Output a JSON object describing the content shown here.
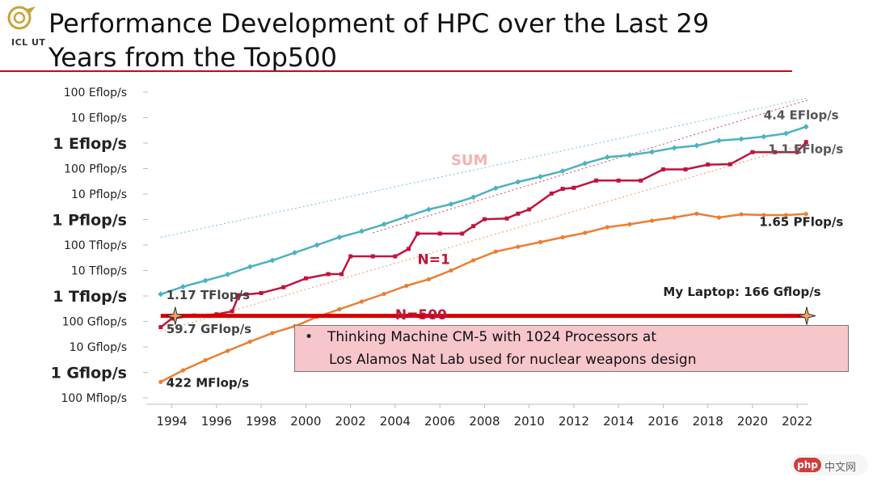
{
  "header": {
    "logo_text": "ICL UT",
    "title_line1": "Performance Development of HPC over the Last 29",
    "title_line2": "Years from the Top500"
  },
  "colors": {
    "sum": "#4bb3c0",
    "n1": "#c0143c",
    "n500": "#ed7d31",
    "laptop": "#d40000",
    "title_rule": "#b5121b",
    "callout_bg": "#f7c6cb"
  },
  "chart_data": {
    "type": "line",
    "x_axis": {
      "min": 1993,
      "max": 2022.5,
      "ticks": [
        1994,
        1996,
        1998,
        2000,
        2002,
        2004,
        2006,
        2008,
        2010,
        2012,
        2014,
        2016,
        2018,
        2020,
        2022
      ]
    },
    "y_axis": {
      "scale": "log",
      "unit": "flop/s",
      "ticks": [
        {
          "label": "100 Mflop/s",
          "value": 100000000.0,
          "major": false
        },
        {
          "label": "1 Gflop/s",
          "value": 1000000000.0,
          "major": true
        },
        {
          "label": "10 Gflop/s",
          "value": 10000000000.0,
          "major": false
        },
        {
          "label": "100 Gflop/s",
          "value": 100000000000.0,
          "major": false
        },
        {
          "label": "1 Tflop/s",
          "value": 1000000000000.0,
          "major": true
        },
        {
          "label": "10 Tflop/s",
          "value": 10000000000000.0,
          "major": false
        },
        {
          "label": "100 Tflop/s",
          "value": 100000000000000.0,
          "major": false
        },
        {
          "label": "1 Pflop/s",
          "value": 1000000000000000.0,
          "major": true
        },
        {
          "label": "10 Pflop/s",
          "value": 1e+16,
          "major": false
        },
        {
          "label": "100 Pflop/s",
          "value": 1e+17,
          "major": false
        },
        {
          "label": "1 Eflop/s",
          "value": 1e+18,
          "major": true
        },
        {
          "label": "10 Eflop/s",
          "value": 1e+19,
          "major": false
        },
        {
          "label": "100 Eflop/s",
          "value": 1e+20,
          "major": false
        }
      ]
    },
    "grid": false,
    "series": [
      {
        "name": "SUM",
        "color": "#4bb3c0",
        "x": [
          1993.5,
          1994.5,
          1995.5,
          1996.5,
          1997.5,
          1998.5,
          1999.5,
          2000.5,
          2001.5,
          2002.5,
          2003.5,
          2004.5,
          2005.5,
          2006.5,
          2007.5,
          2008.5,
          2009.5,
          2010.5,
          2011.5,
          2012.5,
          2013.5,
          2014.5,
          2015.5,
          2016.5,
          2017.5,
          2018.5,
          2019.5,
          2020.5,
          2021.5,
          2022.4
        ],
        "y": [
          1170000000000.0,
          2300000000000.0,
          4000000000000.0,
          7000000000000.0,
          14000000000000.0,
          25000000000000.0,
          50000000000000.0,
          100000000000000.0,
          200000000000000.0,
          350000000000000.0,
          650000000000000.0,
          1300000000000000.0,
          2500000000000000.0,
          4000000000000000.0,
          7500000000000000.0,
          1.7e+16,
          3e+16,
          4.8e+16,
          8e+16,
          1.6e+17,
          2.8e+17,
          3.4e+17,
          4.5e+17,
          6.5e+17,
          8e+17,
          1.25e+18,
          1.45e+18,
          1.8e+18,
          2.4e+18,
          4.4e+18
        ]
      },
      {
        "name": "N=1",
        "color": "#c0143c",
        "x": [
          1993.5,
          1994.0,
          1995.0,
          1996.0,
          1996.7,
          1997.0,
          1998.0,
          1999.0,
          2000.0,
          2001.0,
          2001.6,
          2002.0,
          2003.0,
          2004.0,
          2004.6,
          2005.0,
          2006.0,
          2007.0,
          2007.5,
          2008.0,
          2009.0,
          2009.5,
          2010.0,
          2011.0,
          2011.5,
          2012.0,
          2013.0,
          2014.0,
          2015.0,
          2016.0,
          2017.0,
          2018.0,
          2019.0,
          2020.0,
          2021.0,
          2022.0,
          2022.4
        ],
        "y": [
          59700000000.0,
          130000000000.0,
          170000000000.0,
          190000000000.0,
          250000000000.0,
          1070000000000.0,
          1300000000000.0,
          2200000000000.0,
          4900000000000.0,
          7200000000000.0,
          7200000000000.0,
          35900000000000.0,
          35900000000000.0,
          35900000000000.0,
          70000000000000.0,
          280000000000000.0,
          280000000000000.0,
          280000000000000.0,
          550000000000000.0,
          1030000000000000.0,
          1100000000000000.0,
          1700000000000000.0,
          2500000000000000.0,
          1.05e+16,
          1.6e+16,
          1.76e+16,
          3.39e+16,
          3.39e+16,
          3.39e+16,
          9.3e+16,
          9.3e+16,
          1.435e+17,
          1.485e+17,
          4.42e+17,
          4.42e+17,
          4.42e+17,
          1.1e+18
        ]
      },
      {
        "name": "N=500",
        "color": "#ed7d31",
        "x": [
          1993.5,
          1994.5,
          1995.5,
          1996.5,
          1997.5,
          1998.5,
          1999.5,
          2000.5,
          2001.5,
          2002.5,
          2003.5,
          2004.5,
          2005.5,
          2006.5,
          2007.5,
          2008.5,
          2009.5,
          2010.5,
          2011.5,
          2012.5,
          2013.5,
          2014.5,
          2015.5,
          2016.5,
          2017.5,
          2018.5,
          2019.5,
          2020.5,
          2021.5,
          2022.4
        ],
        "y": [
          422000000.0,
          1200000000.0,
          3000000000.0,
          7000000000.0,
          16000000000.0,
          35000000000.0,
          65000000000.0,
          150000000000.0,
          300000000000.0,
          600000000000.0,
          1200000000000.0,
          2500000000000.0,
          4500000000000.0,
          10000000000000.0,
          25000000000000.0,
          55000000000000.0,
          85000000000000.0,
          130000000000000.0,
          200000000000000.0,
          300000000000000.0,
          500000000000000.0,
          650000000000000.0,
          900000000000000.0,
          1200000000000000.0,
          1700000000000000.0,
          1200000000000000.0,
          1600000000000000.0,
          1500000000000000.0,
          1500000000000000.0,
          1650000000000000.0
        ]
      }
    ],
    "trend_lines": [
      {
        "series": "SUM",
        "x": [
          1993.5,
          2022.5
        ],
        "y": [
          200000000000000.0,
          6e+19
        ]
      },
      {
        "series": "N=1",
        "x": [
          2003.0,
          2022.5
        ],
        "y": [
          300000000000000.0,
          5e+19
        ]
      },
      {
        "series": "N=500",
        "x": [
          1993.5,
          2022.5
        ],
        "y": [
          40000000000.0,
          1e+18
        ]
      }
    ],
    "laptop_line": {
      "label": "My Laptop: 166 Gflop/s",
      "value": 166000000000.0,
      "x_start": 1993.5,
      "x_end": 2022.5
    },
    "annotations": [
      {
        "text": "SUM",
        "x": 2006.5,
        "y": 1.4e+17,
        "color": "#f2b3b3",
        "size": 18,
        "bold": true
      },
      {
        "text": "N=1",
        "x": 2005.0,
        "y": 18000000000000.0,
        "color": "#c0143c",
        "size": 17,
        "bold": true
      },
      {
        "text": "N=500",
        "x": 2004.0,
        "y": 120000000000.0,
        "color": "#c0143c",
        "size": 17,
        "bold": true
      },
      {
        "text": "4.4 EFlop/s",
        "x": 2020.5,
        "y": 8.5e+18,
        "color": "#555",
        "size": 15,
        "bold": true
      },
      {
        "text": "1.1 EFlop/s",
        "x": 2020.7,
        "y": 4e+17,
        "color": "#555",
        "size": 15,
        "bold": true
      },
      {
        "text": "1.65 PFlop/s",
        "x": 2020.3,
        "y": 550000000000000.0,
        "color": "#222",
        "size": 15,
        "bold": true
      },
      {
        "text": "1.17 TFlop/s",
        "x": 1993.75,
        "y": 750000000000.0,
        "color": "#444",
        "size": 15,
        "bold": true
      },
      {
        "text": "59.7 GFlop/s",
        "x": 1993.75,
        "y": 35000000000.0,
        "color": "#444",
        "size": 15,
        "bold": true
      },
      {
        "text": "422 MFlop/s",
        "x": 1993.75,
        "y": 270000000.0,
        "color": "#222",
        "size": 15,
        "bold": true
      },
      {
        "text": "My Laptop: 166 Gflop/s",
        "x": 2016.0,
        "y": 1000000000000.0,
        "color": "#222",
        "size": 15,
        "bold": true
      }
    ],
    "callout": {
      "bullet": "•",
      "line1": "Thinking Machine CM-5 with 1024 Processors at",
      "line2": "Los Alamos Nat Lab used for nuclear weapons design"
    }
  },
  "watermark": {
    "badge": "php",
    "text": "中文网"
  }
}
